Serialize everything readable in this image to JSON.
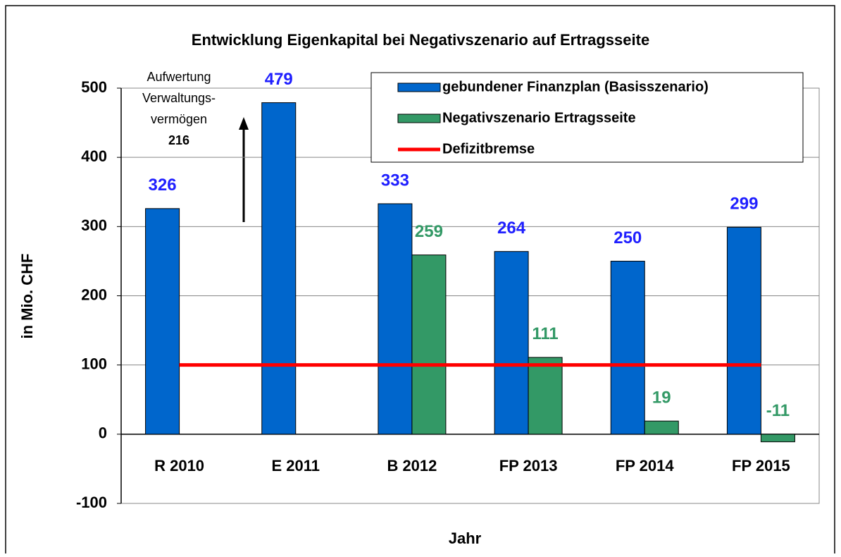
{
  "chart_data": {
    "type": "bar",
    "title": "Entwicklung Eigenkapital bei Negativszenario auf Ertragsseite",
    "x_label": "Jahr",
    "y_label": "in Mio. CHF",
    "categories": [
      "R 2010",
      "E 2011",
      "B 2012",
      "FP 2013",
      "FP 2014",
      "FP 2015"
    ],
    "series": [
      {
        "name": "gebundener Finanzplan (Basisszenario)",
        "type": "bar",
        "color": "#0066cc",
        "label_color": "#1f1fff",
        "values": [
          326,
          479,
          333,
          264,
          250,
          299
        ]
      },
      {
        "name": "Negativszenario Ertragsseite",
        "type": "bar",
        "color": "#339966",
        "label_color": "#339966",
        "values": [
          null,
          null,
          259,
          111,
          19,
          -11
        ]
      },
      {
        "name": "Defizitbremse",
        "type": "line",
        "color": "#ff0000",
        "values": [
          100,
          100,
          100,
          100,
          100,
          100
        ]
      }
    ],
    "ylim": [
      -100,
      500
    ],
    "yticks": [
      -100,
      0,
      100,
      200,
      300,
      400,
      500
    ],
    "grid": true,
    "annotation": {
      "lines": [
        "Aufwertung",
        "Verwaltungs-",
        "vermögen"
      ],
      "value": 216
    }
  }
}
